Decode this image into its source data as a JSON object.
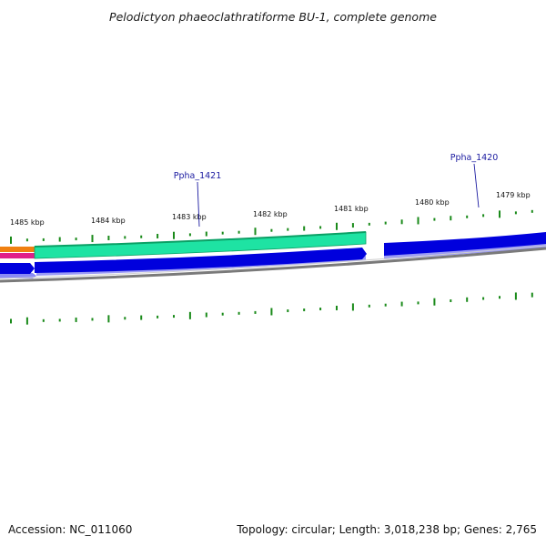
{
  "title": "Pelodictyon phaeoclathratiforme BU-1, complete genome",
  "footer": {
    "accession": "Accession: NC_011060",
    "summary": "Topology: circular; Length: 3,018,238 bp; Genes: 2,765"
  },
  "scale": {
    "tick_labels": [
      {
        "kbp": 1485,
        "label": "1485 kbp"
      },
      {
        "kbp": 1484,
        "label": "1484 kbp"
      },
      {
        "kbp": 1483,
        "label": "1483 kbp"
      },
      {
        "kbp": 1482,
        "label": "1482 kbp"
      },
      {
        "kbp": 1481,
        "label": "1481 kbp"
      },
      {
        "kbp": 1480,
        "label": "1480 kbp"
      },
      {
        "kbp": 1479,
        "label": "1479 kbp"
      }
    ]
  },
  "genes": [
    {
      "name": "Ppha_1421",
      "label": "Ppha_1421",
      "strand": "forward",
      "color": "#0000dd"
    },
    {
      "name": "Ppha_1420",
      "label": "Ppha_1420",
      "strand": "forward",
      "color": "#0000dd"
    }
  ],
  "colors": {
    "cds": "#0000dd",
    "cds_shadow": "#6c6cf0",
    "gene_band": "#1ee3a3",
    "gene_band_edge": "#0aa065",
    "backbone": "#7a7a7a",
    "gc_skew": "#1a8a1a",
    "orange_feature": "#f08010",
    "magenta_feature": "#e0208a",
    "label": "#1a1aa0"
  }
}
